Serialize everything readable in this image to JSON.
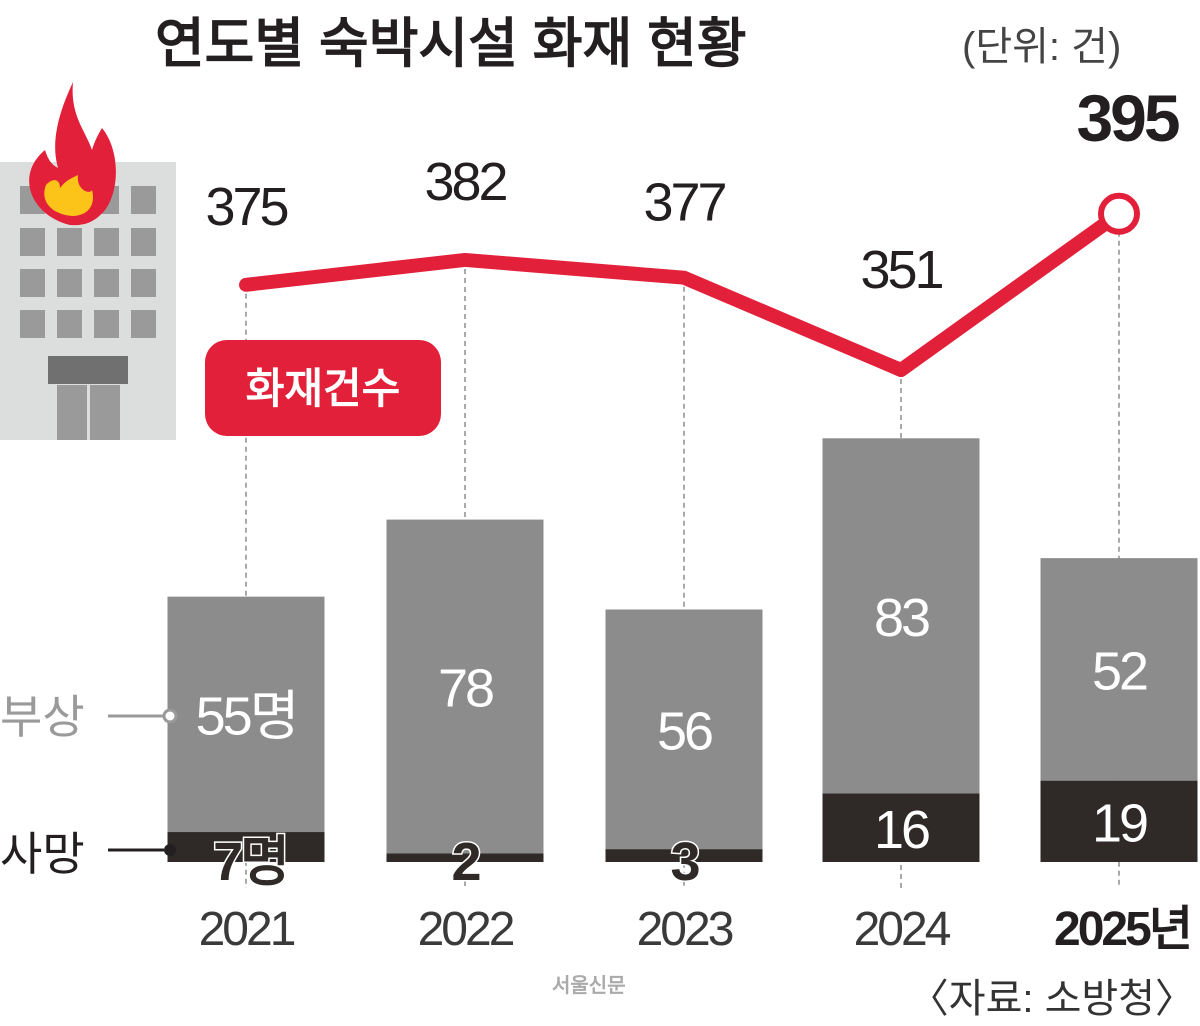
{
  "chart_data": {
    "type": "bar+line",
    "title": "연도별 숙박시설 화재 현황",
    "unit": "(단위: 건)",
    "categories": [
      "2021",
      "2022",
      "2023",
      "2024",
      "2025년"
    ],
    "line_series": {
      "name": "화재건수",
      "values": [
        375,
        382,
        377,
        351,
        395
      ],
      "color": "#e3203a"
    },
    "bar_series": [
      {
        "name": "부상",
        "values": [
          55,
          78,
          56,
          83,
          52
        ],
        "labels": [
          "55명",
          "78",
          "56",
          "83",
          "52"
        ],
        "color": "#8c8c8c"
      },
      {
        "name": "사망",
        "values": [
          7,
          2,
          3,
          16,
          19
        ],
        "labels": [
          "7명",
          "2",
          "3",
          "16",
          "19"
        ],
        "color": "#2f2a28"
      }
    ],
    "source": "〈자료: 소방청〉",
    "watermark": "서울신문"
  }
}
